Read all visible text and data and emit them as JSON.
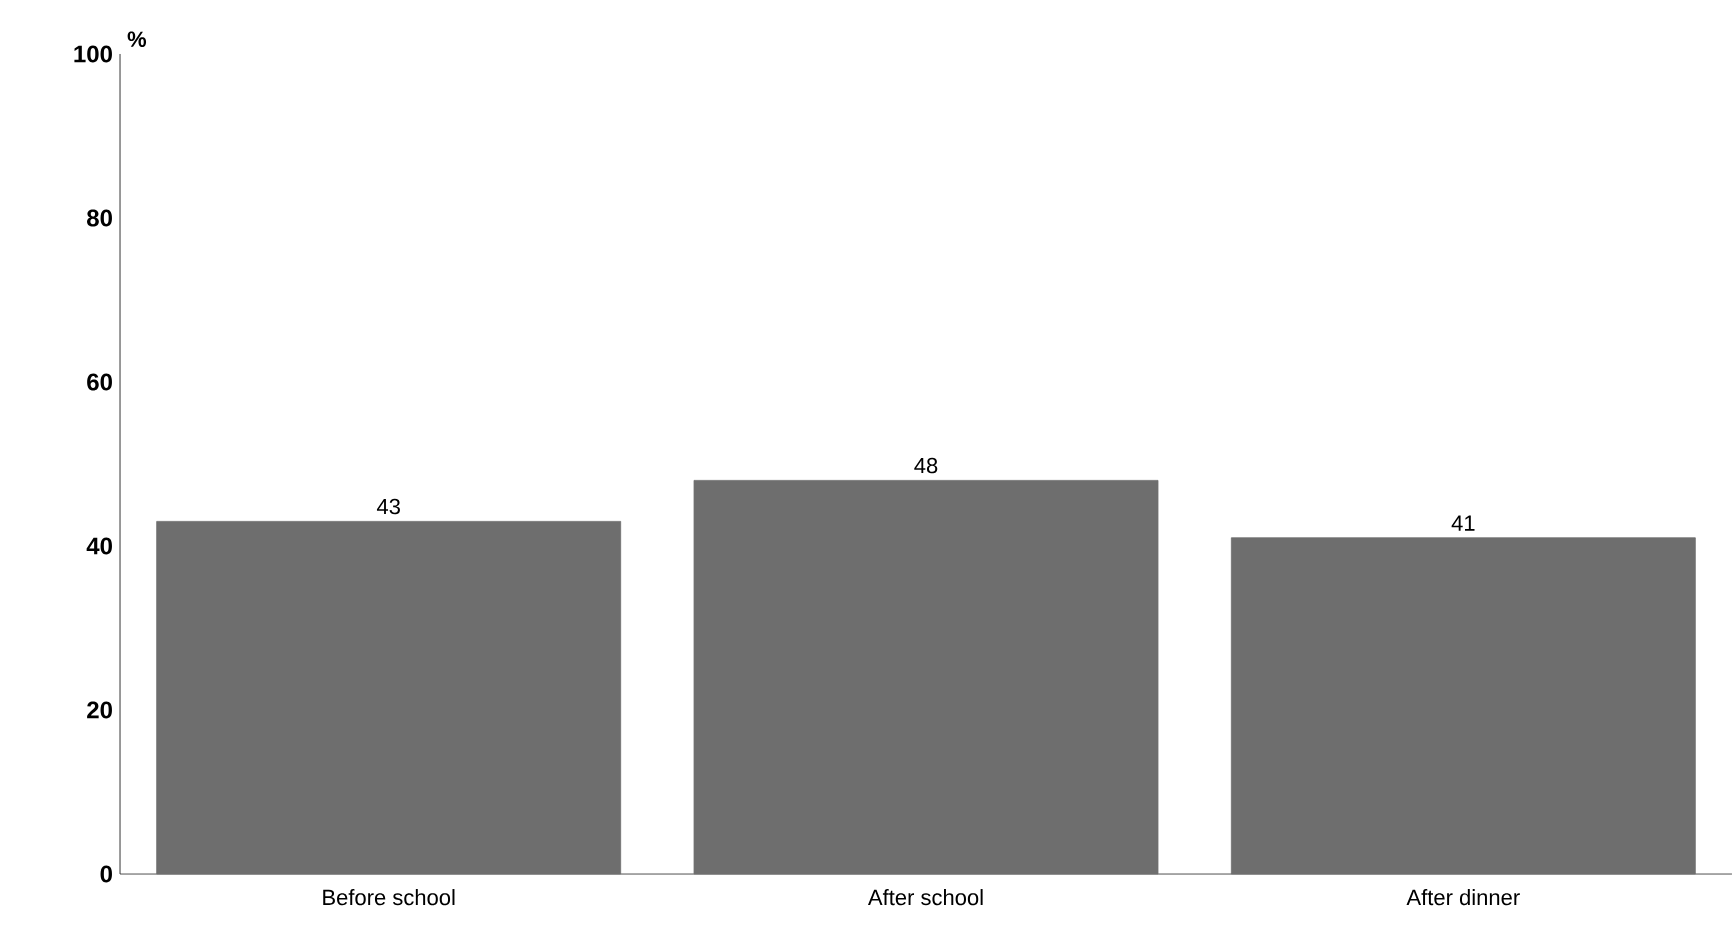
{
  "chart_data": {
    "type": "bar",
    "ylabel": "%",
    "categories": [
      "Before school",
      "After school",
      "After dinner"
    ],
    "values": [
      43,
      48,
      41
    ],
    "color": "#6e6e6e",
    "ylim": [
      0,
      100
    ],
    "yticks": [
      0,
      20,
      40,
      60,
      80,
      100
    ],
    "grid": false,
    "data_labels": true
  }
}
